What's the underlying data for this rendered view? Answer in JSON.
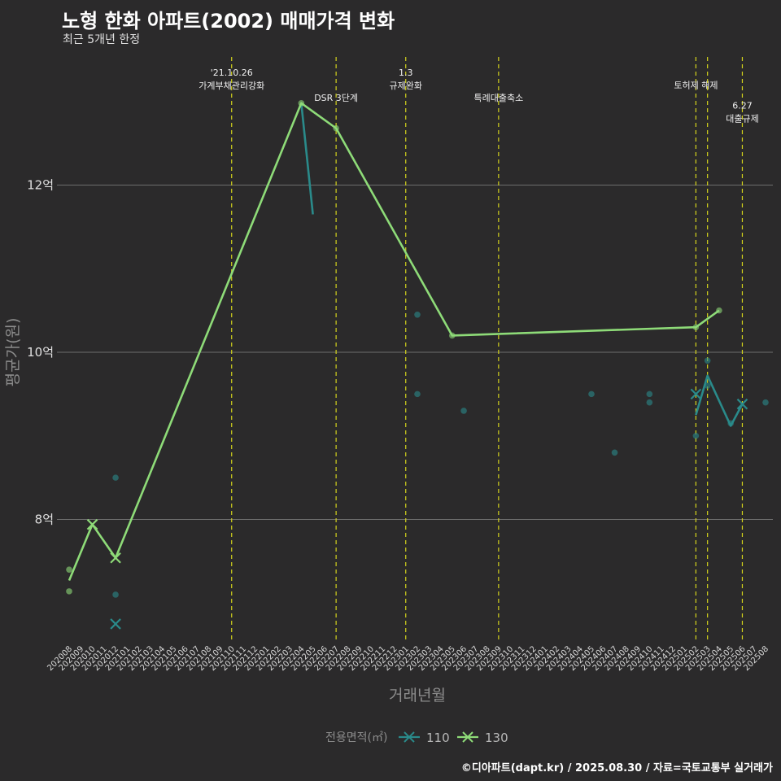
{
  "title": "노형 한화 아파트(2002) 매매가격 변화",
  "subtitle": "최근 5개년 한정",
  "caption": "©디아파트(dapt.kr) / 2025.08.30 / 자료=국토교통부 실거래가",
  "chart_data": {
    "type": "line",
    "xlabel": "거래년월",
    "ylabel": "평균가(원)",
    "categories": [
      "202008",
      "202009",
      "202010",
      "202011",
      "202012",
      "202101",
      "202102",
      "202103",
      "202104",
      "202105",
      "202106",
      "202107",
      "202108",
      "202109",
      "202110",
      "202111",
      "202112",
      "202201",
      "202202",
      "202203",
      "202204",
      "202205",
      "202206",
      "202207",
      "202208",
      "202209",
      "202210",
      "202211",
      "202212",
      "202301",
      "202302",
      "202303",
      "202304",
      "202305",
      "202306",
      "202307",
      "202308",
      "202309",
      "202310",
      "202311",
      "202312",
      "202401",
      "202402",
      "202403",
      "202404",
      "202405",
      "202406",
      "202407",
      "202408",
      "202409",
      "202410",
      "202411",
      "202412",
      "202501",
      "202502",
      "202503",
      "202504",
      "202505",
      "202506",
      "202507",
      "202508"
    ],
    "ylim": [
      6.5,
      14.0
    ],
    "y_ticks": [
      {
        "value": 8,
        "label": "8억"
      },
      {
        "value": 10,
        "label": "10억"
      },
      {
        "value": 12,
        "label": "12억"
      }
    ],
    "grid": true,
    "legend": {
      "title": "전용면적(㎡)",
      "position": "bottom",
      "entries": [
        {
          "name": "110",
          "color": "#2a8a8a"
        },
        {
          "name": "130",
          "color": "#8edb78"
        }
      ]
    },
    "series": [
      {
        "name": "110",
        "color": "#2a8a8a",
        "line": [
          {
            "x": "202204",
            "y": 12.98
          },
          {
            "x": "202205",
            "y": 11.65
          }
        ],
        "line2": [
          {
            "x": "202502",
            "y": 9.25
          },
          {
            "x": "202503",
            "y": 9.72
          },
          {
            "x": "202505",
            "y": 9.12
          },
          {
            "x": "202506",
            "y": 9.38
          }
        ],
        "points": [
          {
            "x": "202012",
            "y": 8.5
          },
          {
            "x": "202012",
            "y": 7.1
          },
          {
            "x": "202302",
            "y": 10.45
          },
          {
            "x": "202302",
            "y": 9.5
          },
          {
            "x": "202306",
            "y": 9.3
          },
          {
            "x": "202405",
            "y": 9.5
          },
          {
            "x": "202407",
            "y": 8.8
          },
          {
            "x": "202410",
            "y": 9.5
          },
          {
            "x": "202410",
            "y": 9.4
          },
          {
            "x": "202502",
            "y": 9.0
          },
          {
            "x": "202503",
            "y": 9.9
          },
          {
            "x": "202503",
            "y": 9.6
          },
          {
            "x": "202505",
            "y": 9.15
          },
          {
            "x": "202508",
            "y": 9.4
          }
        ],
        "crosses": [
          {
            "x": "202012",
            "y": 6.75
          },
          {
            "x": "202502",
            "y": 9.5
          },
          {
            "x": "202506",
            "y": 9.38
          }
        ]
      },
      {
        "name": "130",
        "color": "#8edb78",
        "line": [
          {
            "x": "202008",
            "y": 7.27
          },
          {
            "x": "202010",
            "y": 7.94
          },
          {
            "x": "202012",
            "y": 7.54
          },
          {
            "x": "202204",
            "y": 12.98
          },
          {
            "x": "202207",
            "y": 12.68
          },
          {
            "x": "202305",
            "y": 10.2
          },
          {
            "x": "202502",
            "y": 10.3
          },
          {
            "x": "202504",
            "y": 10.5
          }
        ],
        "line2": [],
        "points": [
          {
            "x": "202008",
            "y": 7.4
          },
          {
            "x": "202008",
            "y": 7.14
          },
          {
            "x": "202204",
            "y": 12.98
          },
          {
            "x": "202207",
            "y": 12.68
          },
          {
            "x": "202305",
            "y": 10.2
          },
          {
            "x": "202502",
            "y": 10.3
          },
          {
            "x": "202504",
            "y": 10.5
          }
        ],
        "crosses": [
          {
            "x": "202010",
            "y": 7.94
          },
          {
            "x": "202012",
            "y": 7.54
          }
        ]
      }
    ],
    "events": [
      {
        "x": "202110",
        "lines": [
          "'21.10.26",
          "가계부채관리강화"
        ],
        "level": 0
      },
      {
        "x": "202207",
        "lines": [
          "DSR 3단계"
        ],
        "level": 1
      },
      {
        "x": "202301",
        "lines": [
          "1.3",
          "규제완화"
        ],
        "level": 0
      },
      {
        "x": "202309",
        "lines": [
          "특례대출축소"
        ],
        "level": 1
      },
      {
        "x": "202502",
        "lines": [
          "토허제 해제"
        ],
        "level": 0.5
      },
      {
        "x": "202503",
        "lines": [],
        "level": 0
      },
      {
        "x": "202506",
        "lines": [
          "6.27",
          "대출규제"
        ],
        "level": 1.3
      }
    ]
  }
}
